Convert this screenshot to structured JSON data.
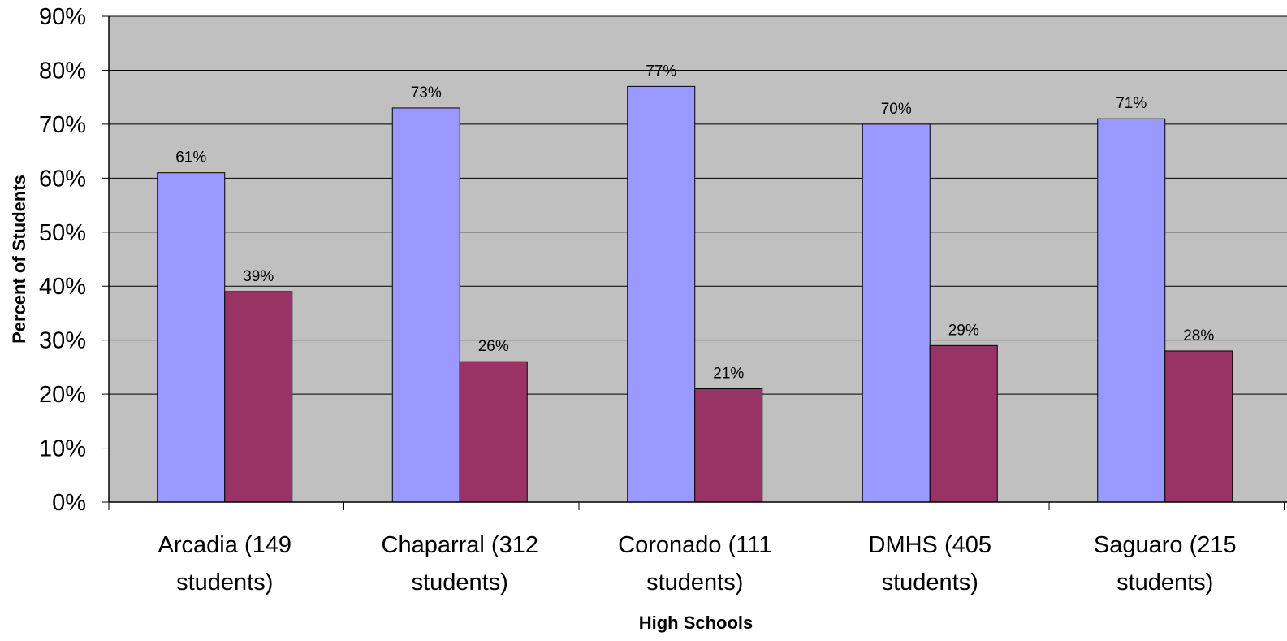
{
  "chart_data": {
    "type": "bar",
    "title": "",
    "xlabel": "High Schools",
    "ylabel": "Percent of Students",
    "ylim": [
      0,
      90
    ],
    "y_ticks": [
      "0%",
      "10%",
      "20%",
      "30%",
      "40%",
      "50%",
      "60%",
      "70%",
      "80%",
      "90%"
    ],
    "grid": true,
    "legend": "none",
    "categories": [
      [
        "Arcadia (149",
        "students)"
      ],
      [
        "Chaparral (312",
        "students)"
      ],
      [
        "Coronado (111",
        "students)"
      ],
      [
        "DMHS (405",
        "students)"
      ],
      [
        "Saguaro (215",
        "students)"
      ]
    ],
    "series": [
      {
        "color": "#9999ff",
        "values": [
          61,
          73,
          77,
          70,
          71
        ],
        "labels": [
          "61%",
          "73%",
          "77%",
          "70%",
          "71%"
        ]
      },
      {
        "color": "#993366",
        "values": [
          39,
          26,
          21,
          29,
          28
        ],
        "labels": [
          "39%",
          "26%",
          "21%",
          "29%",
          "28%"
        ]
      }
    ],
    "plot_background": "#c0c0c0"
  }
}
